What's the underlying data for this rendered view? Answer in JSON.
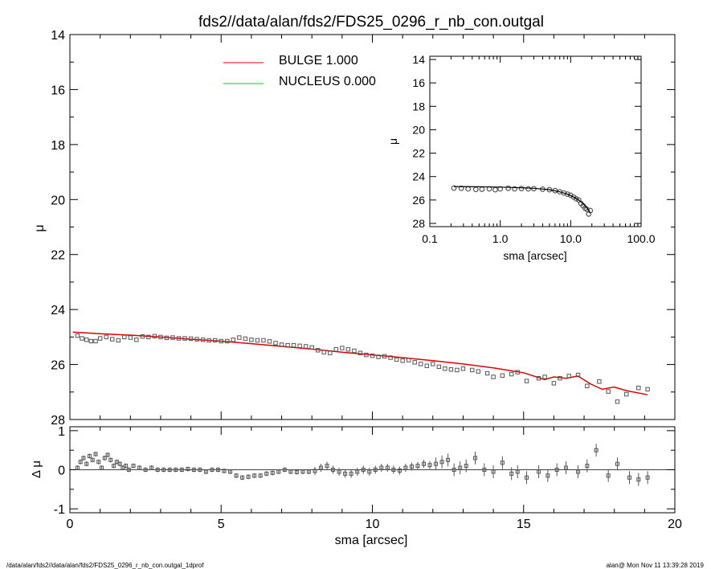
{
  "page": {
    "title": "fds2//data/alan/fds2/FDS25_0296_r_nb_con.outgal",
    "footer_left": "/data/alan/fds2//data/alan/fds2/FDS25_0296_r_nb_con.outgal_1dprof",
    "footer_right": "alan@  Mon Nov 11 13:39:28 2019"
  },
  "colors": {
    "bulge": "#e00000",
    "nucleus": "#00d000",
    "data": "#555555",
    "axis": "#000000"
  },
  "chart_data": [
    {
      "type": "scatter",
      "id": "main",
      "xlabel": "",
      "ylabel": "μ",
      "xlim": [
        0,
        20
      ],
      "ylim": [
        28,
        14
      ],
      "y_inverted": true,
      "xticks": [
        0,
        5,
        10,
        15,
        20
      ],
      "yticks": [
        14,
        16,
        18,
        20,
        22,
        24,
        26,
        28
      ],
      "legend": {
        "placement": "top-center",
        "entries": [
          {
            "name": "BULGE  1.000",
            "color": "#e00000"
          },
          {
            "name": "NUCLEUS  0.000",
            "color": "#00d000"
          }
        ]
      },
      "series": [
        {
          "name": "BULGE  1.000",
          "kind": "line",
          "color": "#e00000",
          "x": [
            0.1,
            1,
            2,
            3,
            4,
            5,
            6,
            7,
            8,
            9,
            10,
            11,
            12,
            13,
            14,
            15,
            15.7,
            16,
            16.4,
            16.8,
            17.2,
            17.6,
            18,
            18.4,
            19.1
          ],
          "y": [
            24.82,
            24.88,
            24.93,
            25.0,
            25.08,
            25.15,
            25.24,
            25.34,
            25.44,
            25.55,
            25.65,
            25.75,
            25.86,
            25.98,
            26.12,
            26.3,
            26.55,
            26.45,
            26.5,
            26.42,
            26.7,
            26.9,
            26.82,
            26.95,
            27.1
          ]
        },
        {
          "name": "data",
          "kind": "points",
          "color": "#555555",
          "x": [
            0.25,
            0.4,
            0.55,
            0.7,
            0.85,
            1.0,
            1.2,
            1.4,
            1.6,
            1.8,
            2.0,
            2.2,
            2.4,
            2.6,
            2.8,
            3.0,
            3.2,
            3.4,
            3.6,
            3.8,
            4.0,
            4.2,
            4.4,
            4.6,
            4.8,
            5.0,
            5.2,
            5.4,
            5.6,
            5.8,
            6.0,
            6.2,
            6.4,
            6.6,
            6.8,
            7.0,
            7.2,
            7.4,
            7.6,
            7.8,
            8.0,
            8.2,
            8.4,
            8.6,
            8.8,
            9.0,
            9.2,
            9.4,
            9.6,
            9.8,
            10.0,
            10.2,
            10.4,
            10.6,
            10.8,
            11.0,
            11.2,
            11.4,
            11.6,
            11.8,
            12.0,
            12.2,
            12.4,
            12.6,
            12.8,
            13.0,
            13.3,
            13.5,
            13.8,
            14.0,
            14.3,
            14.6,
            14.8,
            15.1,
            15.5,
            15.7,
            16.0,
            16.2,
            16.5,
            16.8,
            17.1,
            17.5,
            17.8,
            18.1,
            18.4,
            18.8,
            19.1
          ],
          "y": [
            24.95,
            25.05,
            25.1,
            25.15,
            25.15,
            25.05,
            25.0,
            25.08,
            25.12,
            25.0,
            25.02,
            25.1,
            24.98,
            25.0,
            24.97,
            25.0,
            25.03,
            25.02,
            25.05,
            25.05,
            25.06,
            25.08,
            25.1,
            25.12,
            25.12,
            25.15,
            25.15,
            25.1,
            25.02,
            25.06,
            25.1,
            25.12,
            25.12,
            25.16,
            25.22,
            25.28,
            25.3,
            25.3,
            25.32,
            25.34,
            25.38,
            25.48,
            25.55,
            25.58,
            25.45,
            25.4,
            25.45,
            25.5,
            25.58,
            25.65,
            25.68,
            25.72,
            25.7,
            25.75,
            25.82,
            25.86,
            25.84,
            25.92,
            25.98,
            26.05,
            25.98,
            26.08,
            26.15,
            26.18,
            26.2,
            26.15,
            26.2,
            26.25,
            26.32,
            26.45,
            26.4,
            26.35,
            26.28,
            26.6,
            26.5,
            26.45,
            26.68,
            26.5,
            26.42,
            26.38,
            26.78,
            26.62,
            26.98,
            27.35,
            27.08,
            26.85,
            26.9
          ]
        }
      ]
    },
    {
      "type": "scatter",
      "id": "residual",
      "xlabel": "sma [arcsec]",
      "ylabel": "Δ μ",
      "xlim": [
        0,
        20
      ],
      "ylim": [
        -1.1,
        1.1
      ],
      "xticks": [
        0,
        5,
        10,
        15,
        20
      ],
      "yticks": [
        -1,
        0,
        1
      ],
      "zero_line": true,
      "series": [
        {
          "name": "residual",
          "kind": "points",
          "color": "#555555",
          "x": [
            0.25,
            0.35,
            0.45,
            0.55,
            0.65,
            0.75,
            0.85,
            0.95,
            1.05,
            1.15,
            1.25,
            1.35,
            1.45,
            1.55,
            1.65,
            1.75,
            1.85,
            1.95,
            2.1,
            2.3,
            2.5,
            2.7,
            2.9,
            3.1,
            3.3,
            3.5,
            3.7,
            3.9,
            4.1,
            4.3,
            4.5,
            4.7,
            4.9,
            5.1,
            5.3,
            5.5,
            5.7,
            5.9,
            6.1,
            6.3,
            6.5,
            6.7,
            6.9,
            7.1,
            7.3,
            7.5,
            7.7,
            7.9,
            8.1,
            8.3,
            8.5,
            8.7,
            8.9,
            9.1,
            9.3,
            9.5,
            9.7,
            9.9,
            10.1,
            10.3,
            10.5,
            10.7,
            10.9,
            11.1,
            11.3,
            11.5,
            11.7,
            11.9,
            12.1,
            12.3,
            12.5,
            12.7,
            12.9,
            13.1,
            13.4,
            13.7,
            14.0,
            14.3,
            14.6,
            14.8,
            15.1,
            15.5,
            15.8,
            16.1,
            16.4,
            16.8,
            17.1,
            17.4,
            17.8,
            18.1,
            18.5,
            18.8,
            19.1
          ],
          "y": [
            0.05,
            0.2,
            0.3,
            0.15,
            0.35,
            0.25,
            0.4,
            0.2,
            0.05,
            0.3,
            0.38,
            0.25,
            0.1,
            0.2,
            0.15,
            0.05,
            0.1,
            0.0,
            0.1,
            0.05,
            0.0,
            0.05,
            0.0,
            0.0,
            0.0,
            0.0,
            0.0,
            0.02,
            0.0,
            0.0,
            -0.05,
            0.0,
            0.0,
            -0.03,
            -0.05,
            -0.15,
            -0.2,
            -0.18,
            -0.15,
            -0.15,
            -0.1,
            -0.08,
            -0.05,
            0.0,
            -0.05,
            -0.06,
            -0.05,
            -0.05,
            -0.03,
            0.05,
            0.1,
            0.0,
            -0.05,
            -0.1,
            -0.1,
            -0.05,
            0.0,
            -0.05,
            0.0,
            0.05,
            0.05,
            0.0,
            -0.02,
            0.05,
            0.08,
            0.1,
            0.15,
            0.12,
            0.15,
            0.2,
            0.25,
            0.0,
            0.05,
            0.1,
            0.3,
            0.0,
            -0.05,
            0.18,
            -0.1,
            -0.05,
            -0.2,
            -0.05,
            -0.15,
            0.0,
            0.05,
            -0.05,
            0.1,
            0.5,
            -0.15,
            0.15,
            -0.2,
            -0.25,
            -0.2
          ]
        }
      ]
    },
    {
      "type": "scatter",
      "id": "inset",
      "xlabel": "sma [arcsec]",
      "ylabel": "μ",
      "xscale": "log",
      "xlim": [
        0.1,
        100
      ],
      "ylim": [
        28,
        14
      ],
      "y_inverted": true,
      "xticklabels": [
        "0.1",
        "1.0",
        "10.0",
        "100.0"
      ],
      "yticks": [
        14,
        16,
        18,
        20,
        22,
        24,
        26,
        28
      ],
      "series": [
        {
          "name": "data",
          "kind": "points",
          "color": "#555555",
          "x": [
            0.22,
            0.28,
            0.35,
            0.45,
            0.55,
            0.7,
            0.85,
            1.0,
            1.3,
            1.6,
            2.0,
            2.5,
            3.0,
            4.0,
            5.0,
            6.0,
            7.0,
            8.0,
            9.0,
            10.0,
            11.0,
            12.0,
            13.0,
            14.0,
            15.0,
            16.0,
            17.0,
            18.0,
            19.0
          ],
          "y": [
            24.98,
            25.0,
            25.05,
            25.1,
            25.08,
            25.05,
            25.12,
            25.05,
            25.0,
            25.05,
            25.02,
            25.05,
            25.03,
            25.08,
            25.12,
            25.2,
            25.3,
            25.4,
            25.5,
            25.6,
            25.75,
            25.9,
            26.0,
            26.3,
            26.5,
            26.7,
            26.8,
            27.2,
            26.9
          ]
        },
        {
          "name": "BULGE  1.000",
          "kind": "line",
          "color": "#000000",
          "x": [
            0.22,
            0.5,
            1.0,
            2.0,
            3.0,
            5.0,
            7.0,
            9.0,
            11.0,
            13.0,
            15.0,
            17.0,
            19.0
          ],
          "y": [
            24.85,
            24.87,
            24.9,
            24.95,
            25.0,
            25.12,
            25.3,
            25.5,
            25.75,
            26.0,
            26.3,
            26.65,
            27.1
          ]
        }
      ]
    }
  ]
}
